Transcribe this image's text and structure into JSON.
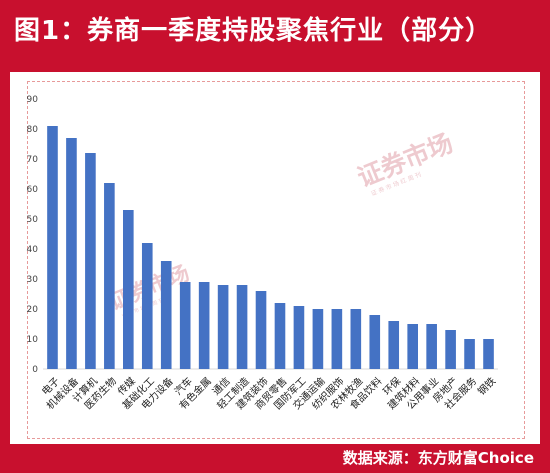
{
  "header": {
    "title": "图1：券商一季度持股聚焦行业（部分）"
  },
  "footer": {
    "source": "数据来源：东方财富Choice"
  },
  "watermark": {
    "main": "证券市场",
    "sub": "证 券 市 场 红 周 刊",
    "color": "#e1a0a8"
  },
  "colors": {
    "frame": "#c8102e",
    "bar": "#4472c4"
  },
  "chart_data": {
    "type": "bar",
    "title": "",
    "xlabel": "",
    "ylabel": "",
    "ylim": [
      0,
      90
    ],
    "yticks": [
      0,
      10,
      20,
      30,
      40,
      50,
      60,
      70,
      80,
      90
    ],
    "grid": false,
    "categories": [
      "电子",
      "机械设备",
      "计算机",
      "医药生物",
      "传媒",
      "基础化工",
      "电力设备",
      "汽车",
      "有色金属",
      "通信",
      "轻工制造",
      "建筑装饰",
      "商贸零售",
      "国防军工",
      "交通运输",
      "纺织服饰",
      "农林牧渔",
      "食品饮料",
      "环保",
      "建筑材料",
      "公用事业",
      "房地产",
      "社会服务",
      "钢铁"
    ],
    "values": [
      81,
      77,
      72,
      62,
      53,
      42,
      36,
      29,
      29,
      28,
      28,
      26,
      22,
      21,
      20,
      20,
      20,
      18,
      16,
      15,
      15,
      13,
      10,
      10
    ]
  }
}
